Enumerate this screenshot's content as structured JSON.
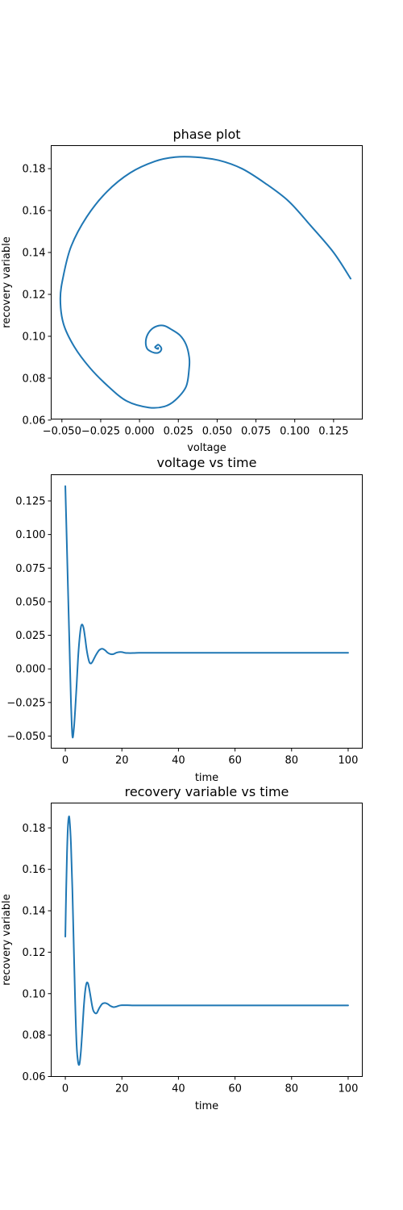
{
  "colors": {
    "series": "#1f77b4",
    "axes": "#000000",
    "background": "#ffffff"
  },
  "chart_data": [
    {
      "type": "line",
      "title": "phase plot",
      "xlabel": "voltage",
      "ylabel": "recovery variable",
      "xlim": [
        -0.0569,
        0.1435
      ],
      "ylim": [
        0.0605,
        0.191
      ],
      "xticks": [
        -0.05,
        -0.025,
        0.0,
        0.025,
        0.05,
        0.075,
        0.1,
        0.125
      ],
      "xtick_labels": [
        "−0.050",
        "−0.025",
        "0.000",
        "0.025",
        "0.050",
        "0.075",
        "0.100",
        "0.125"
      ],
      "yticks": [
        0.06,
        0.08,
        0.1,
        0.12,
        0.14,
        0.16,
        0.18
      ],
      "ytick_labels": [
        "0.06",
        "0.08",
        "0.10",
        "0.12",
        "0.14",
        "0.16",
        "0.18"
      ],
      "grid": false,
      "series": [
        {
          "x": [
            0.136,
            0.125,
            0.11,
            0.096,
            0.081,
            0.066,
            0.051,
            0.036,
            0.023,
            0.01,
            -0.006,
            -0.021,
            -0.034,
            -0.044,
            -0.049,
            -0.051,
            -0.049,
            -0.042,
            -0.032,
            -0.02,
            -0.008,
            0.006,
            0.016,
            0.023,
            0.03,
            0.032,
            0.032,
            0.03,
            0.026,
            0.02,
            0.016,
            0.012,
            0.008,
            0.005,
            0.004,
            0.005,
            0.008,
            0.011,
            0.013,
            0.014,
            0.014,
            0.013,
            0.012,
            0.011,
            0.01,
            0.011,
            0.012,
            0.012
          ],
          "y": [
            0.1275,
            0.14,
            0.153,
            0.1645,
            0.173,
            0.18,
            0.184,
            0.1855,
            0.1855,
            0.1835,
            0.178,
            0.169,
            0.157,
            0.143,
            0.129,
            0.118,
            0.106,
            0.095,
            0.085,
            0.076,
            0.069,
            0.066,
            0.0665,
            0.0695,
            0.076,
            0.085,
            0.09,
            0.096,
            0.1005,
            0.1035,
            0.105,
            0.105,
            0.1035,
            0.1005,
            0.097,
            0.094,
            0.0925,
            0.092,
            0.0925,
            0.0935,
            0.0945,
            0.0955,
            0.096,
            0.0955,
            0.0948,
            0.0942,
            0.094,
            0.0945
          ]
        }
      ]
    },
    {
      "type": "line",
      "title": "voltage vs time",
      "xlabel": "time",
      "ylabel": "",
      "xlim": [
        -5,
        105
      ],
      "ylim": [
        -0.059,
        0.1445
      ],
      "xticks": [
        0,
        20,
        40,
        60,
        80,
        100
      ],
      "xtick_labels": [
        "0",
        "20",
        "40",
        "60",
        "80",
        "100"
      ],
      "yticks": [
        -0.05,
        -0.025,
        0.0,
        0.025,
        0.05,
        0.075,
        0.1,
        0.125
      ],
      "ytick_labels": [
        "−0.050",
        "−0.025",
        "0.000",
        "0.025",
        "0.050",
        "0.075",
        "0.100",
        "0.125"
      ],
      "grid": false,
      "series": [
        {
          "x": [
            0,
            0.5,
            1.0,
            1.5,
            2.0,
            2.5,
            3.0,
            3.5,
            4.0,
            4.5,
            5.0,
            5.5,
            6.0,
            6.5,
            7.0,
            7.5,
            8.0,
            8.5,
            9.0,
            9.5,
            10,
            11,
            12,
            13,
            14,
            15,
            16,
            17,
            18,
            19,
            20,
            21,
            22,
            24,
            26,
            28,
            30,
            40,
            50,
            60,
            70,
            80,
            90,
            100
          ],
          "y": [
            0.136,
            0.096,
            0.055,
            0.015,
            -0.025,
            -0.05,
            -0.045,
            -0.03,
            -0.012,
            0.008,
            0.022,
            0.031,
            0.033,
            0.03,
            0.023,
            0.015,
            0.009,
            0.005,
            0.004,
            0.005,
            0.007,
            0.011,
            0.014,
            0.015,
            0.014,
            0.012,
            0.011,
            0.011,
            0.012,
            0.0125,
            0.0125,
            0.012,
            0.0118,
            0.0118,
            0.012,
            0.012,
            0.012,
            0.012,
            0.012,
            0.012,
            0.012,
            0.012,
            0.012,
            0.012
          ]
        }
      ]
    },
    {
      "type": "line",
      "title": "recovery variable vs time",
      "xlabel": "time",
      "ylabel": "recovery variable",
      "xlim": [
        -5,
        105
      ],
      "ylim": [
        0.06,
        0.192
      ],
      "xticks": [
        0,
        20,
        40,
        60,
        80,
        100
      ],
      "xtick_labels": [
        "0",
        "20",
        "40",
        "60",
        "80",
        "100"
      ],
      "yticks": [
        0.06,
        0.08,
        0.1,
        0.12,
        0.14,
        0.16,
        0.18
      ],
      "ytick_labels": [
        "0.06",
        "0.08",
        "0.10",
        "0.12",
        "0.14",
        "0.16",
        "0.18"
      ],
      "grid": false,
      "series": [
        {
          "x": [
            0,
            0.3,
            0.6,
            0.9,
            1.2,
            1.5,
            2.0,
            2.5,
            3.0,
            3.5,
            4.0,
            4.5,
            5.0,
            5.5,
            6.0,
            6.5,
            7.0,
            7.5,
            8.0,
            8.5,
            9.0,
            9.5,
            10,
            11,
            12,
            13,
            14,
            15,
            16,
            17,
            18,
            19,
            20,
            22,
            24,
            26,
            28,
            30,
            40,
            50,
            60,
            70,
            80,
            90,
            100
          ],
          "y": [
            0.1275,
            0.15,
            0.168,
            0.18,
            0.185,
            0.184,
            0.172,
            0.15,
            0.122,
            0.095,
            0.075,
            0.067,
            0.066,
            0.072,
            0.082,
            0.093,
            0.101,
            0.105,
            0.105,
            0.102,
            0.098,
            0.094,
            0.0915,
            0.0905,
            0.093,
            0.095,
            0.0955,
            0.095,
            0.094,
            0.0935,
            0.0937,
            0.0942,
            0.0944,
            0.0944,
            0.0943,
            0.0943,
            0.0943,
            0.0943,
            0.0943,
            0.0943,
            0.0943,
            0.0943,
            0.0943,
            0.0943,
            0.0943
          ]
        }
      ]
    }
  ]
}
